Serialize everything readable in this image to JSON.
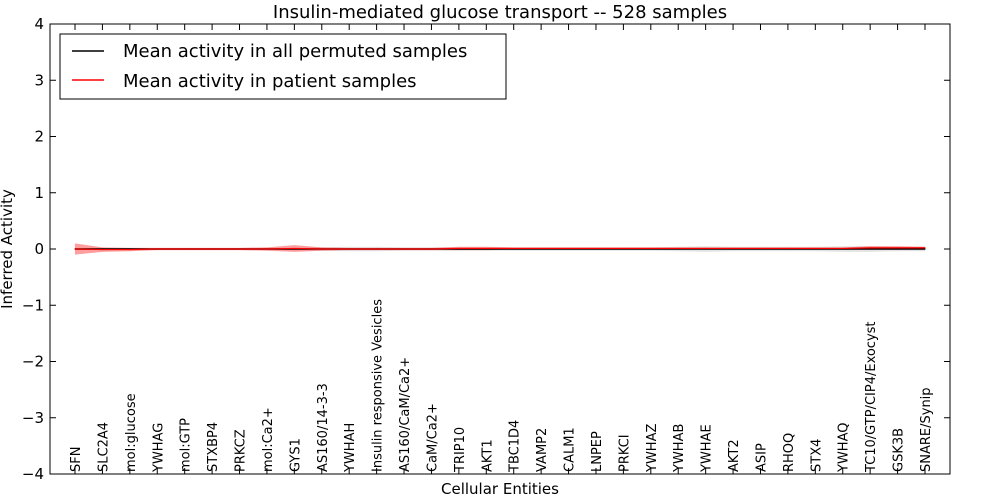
{
  "chart_data": {
    "type": "line",
    "title": "Insulin-mediated glucose transport -- 528 samples",
    "xlabel": "Cellular Entities",
    "ylabel": "Inferred Activity",
    "ylim": [
      -4,
      4
    ],
    "yticks": [
      -4,
      -3,
      -2,
      -1,
      0,
      1,
      2,
      3,
      4
    ],
    "ytick_labels": [
      "−4",
      "−3",
      "−2",
      "−1",
      "0",
      "1",
      "2",
      "3",
      "4"
    ],
    "legend_position": "top-left",
    "categories": [
      "SFN",
      "SLC2A4",
      "mol:glucose",
      "YWHAG",
      "mol:GTP",
      "STXBP4",
      "PRKCZ",
      "mol:Ca2+",
      "GYS1",
      "AS160/14-3-3",
      "YWHAH",
      "Insulin responsive Vesicles",
      "AS160/CaM/Ca2+",
      "CaM/Ca2+",
      "TRIP10",
      "AKT1",
      "TBC1D4",
      "VAMP2",
      "CALM1",
      "LNPEP",
      "PRKCI",
      "YWHAZ",
      "YWHAB",
      "YWHAE",
      "AKT2",
      "ASIP",
      "RHOQ",
      "STX4",
      "YWHAQ",
      "TC10/GTP/CIP4/Exocyst",
      "GSK3B",
      "SNARE/Synip"
    ],
    "series": [
      {
        "name": "Mean activity in all permuted samples",
        "color": "#000000",
        "values": [
          0,
          0,
          0,
          0,
          0,
          0,
          0,
          0,
          0,
          0,
          0,
          0,
          0,
          0,
          0,
          0,
          0,
          0,
          0,
          0,
          0,
          0,
          0,
          0,
          0,
          0,
          0,
          0,
          0,
          0,
          0,
          0
        ],
        "band": [
          0.02,
          0.02,
          0.02,
          0.02,
          0.02,
          0.02,
          0.02,
          0.02,
          0.02,
          0.03,
          0.04,
          0.04,
          0.03,
          0.03,
          0.03,
          0.03,
          0.03,
          0.03,
          0.03,
          0.03,
          0.03,
          0.03,
          0.04,
          0.05,
          0.04,
          0.04,
          0.04,
          0.04,
          0.05,
          0.05,
          0.04,
          0.04
        ]
      },
      {
        "name": "Mean activity in patient samples",
        "color": "#ff0000",
        "values": [
          0.0,
          -0.01,
          -0.01,
          0.0,
          0.0,
          0.0,
          0.0,
          0.0,
          0.01,
          0.0,
          0.0,
          0.0,
          0.0,
          0.0,
          0.01,
          0.01,
          0.01,
          0.01,
          0.01,
          0.01,
          0.01,
          0.01,
          0.01,
          0.01,
          0.01,
          0.01,
          0.01,
          0.01,
          0.01,
          0.02,
          0.02,
          0.02
        ],
        "band": [
          0.1,
          0.04,
          0.03,
          0.02,
          0.02,
          0.02,
          0.02,
          0.03,
          0.06,
          0.03,
          0.02,
          0.02,
          0.02,
          0.02,
          0.03,
          0.03,
          0.02,
          0.02,
          0.02,
          0.02,
          0.02,
          0.02,
          0.02,
          0.02,
          0.02,
          0.02,
          0.02,
          0.02,
          0.02,
          0.03,
          0.03,
          0.02
        ]
      }
    ]
  }
}
